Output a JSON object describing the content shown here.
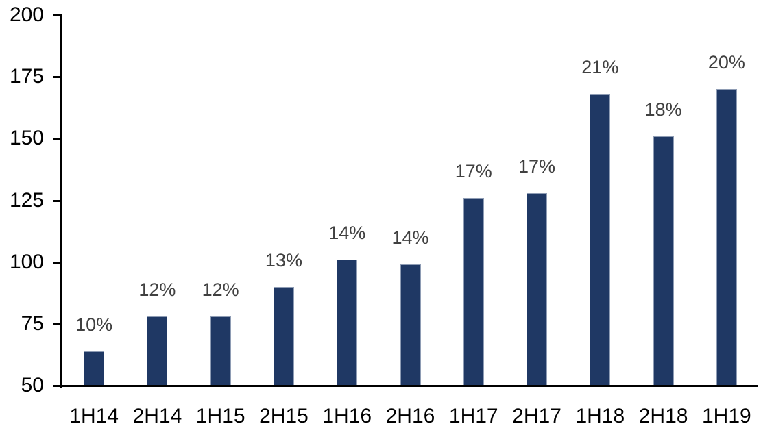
{
  "chart_data": {
    "type": "bar",
    "categories": [
      "1H14",
      "2H14",
      "1H15",
      "2H15",
      "1H16",
      "2H16",
      "1H17",
      "2H17",
      "1H18",
      "2H18",
      "1H19"
    ],
    "values": [
      64,
      78,
      78,
      90,
      101,
      99,
      126,
      128,
      168,
      151,
      170
    ],
    "data_labels": [
      "10%",
      "12%",
      "12%",
      "13%",
      "14%",
      "14%",
      "17%",
      "17%",
      "21%",
      "18%",
      "20%"
    ],
    "title": "",
    "xlabel": "",
    "ylabel": "",
    "ylim": [
      50,
      200
    ],
    "y_ticks": [
      50,
      75,
      100,
      125,
      150,
      175,
      200
    ],
    "grid": false,
    "legend": false,
    "colors": {
      "bar_fill": "#1F3864",
      "bar_border": "#8E9CB4",
      "data_label": "#404040",
      "axis_line": "#000000",
      "axis_text": "#000000"
    }
  }
}
